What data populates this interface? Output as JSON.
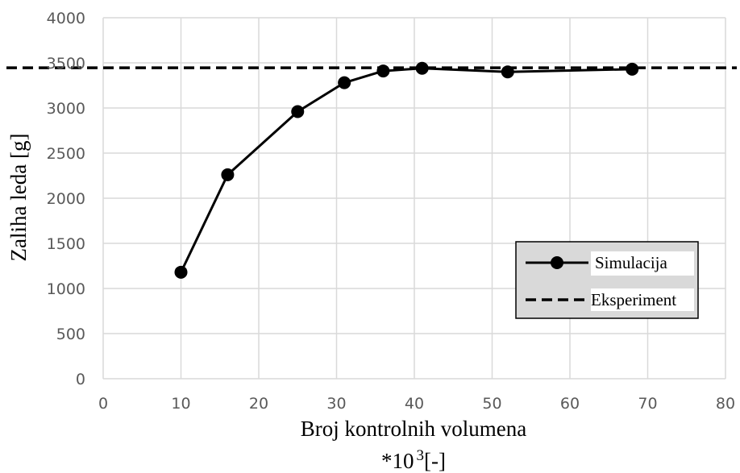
{
  "chart_data": {
    "type": "line",
    "xlabel": "Broj kontrolnih volumena",
    "xlabel_unit": "*10",
    "xlabel_unit_exp": "3",
    "xlabel_unit_suffix": "[-]",
    "ylabel": "Zaliha leda [g]",
    "xlim": [
      0,
      80
    ],
    "ylim": [
      0,
      4000
    ],
    "xticks": [
      "0",
      "10",
      "20",
      "30",
      "40",
      "50",
      "60",
      "70",
      "80"
    ],
    "yticks": [
      "0",
      "500",
      "1000",
      "1500",
      "2000",
      "2500",
      "3000",
      "3500",
      "4000"
    ],
    "grid": true,
    "legend_position": "lower-right",
    "series": [
      {
        "name": "Simulacija",
        "style": "solid-with-markers",
        "color": "#000000",
        "x": [
          10,
          16,
          25,
          31,
          36,
          41,
          52,
          68
        ],
        "y": [
          1180,
          2260,
          2960,
          3280,
          3410,
          3440,
          3400,
          3430
        ]
      },
      {
        "name": "Eksperiment",
        "style": "dashed",
        "color": "#000000",
        "constant_y": 3445
      }
    ]
  }
}
